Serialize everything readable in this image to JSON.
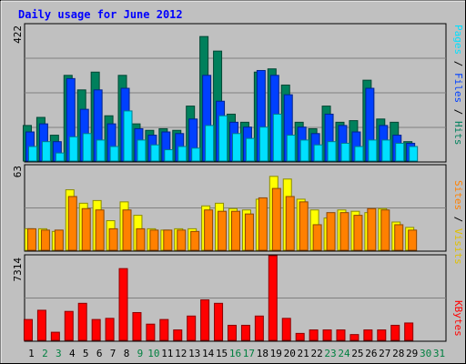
{
  "chart_data": [
    {
      "type": "bar",
      "title": "Daily usage for June 2012",
      "ymax_label": "422",
      "ylim": [
        0,
        422
      ],
      "legend": [
        {
          "name": "Pages",
          "color": "#00e0ff"
        },
        {
          "name": "Files",
          "color": "#0040ff"
        },
        {
          "name": "Hits",
          "color": "#00805c"
        }
      ],
      "legend_separator": " / ",
      "categories": [
        "1",
        "2",
        "3",
        "4",
        "5",
        "6",
        "7",
        "8",
        "9",
        "10",
        "11",
        "12",
        "13",
        "14",
        "15",
        "16",
        "17",
        "18",
        "19",
        "20",
        "21",
        "22",
        "23",
        "24",
        "25",
        "26",
        "27",
        "28",
        "29",
        "30",
        "31"
      ],
      "weekend_days": [
        "2",
        "3",
        "9",
        "10",
        "16",
        "17",
        "23",
        "24",
        "30",
        "31"
      ],
      "series": [
        {
          "name": "Hits",
          "color": "#00805c",
          "values": [
            110,
            135,
            80,
            265,
            220,
            275,
            140,
            265,
            115,
            95,
            100,
            95,
            170,
            385,
            340,
            145,
            120,
            275,
            285,
            235,
            120,
            100,
            170,
            120,
            125,
            250,
            130,
            120,
            60,
            null,
            null
          ]
        },
        {
          "name": "Files",
          "color": "#0040ff",
          "values": [
            90,
            115,
            60,
            255,
            160,
            220,
            115,
            225,
            100,
            80,
            90,
            85,
            130,
            265,
            185,
            120,
            105,
            280,
            265,
            205,
            105,
            85,
            145,
            110,
            90,
            225,
            110,
            80,
            55,
            null,
            null
          ]
        },
        {
          "name": "Pages",
          "color": "#00e0ff",
          "values": [
            45,
            60,
            25,
            75,
            85,
            65,
            45,
            155,
            65,
            50,
            35,
            45,
            40,
            110,
            140,
            85,
            70,
            105,
            145,
            80,
            65,
            50,
            60,
            55,
            45,
            65,
            65,
            55,
            45,
            null,
            null
          ]
        }
      ]
    },
    {
      "type": "bar",
      "ymax_label": "63",
      "ylim": [
        0,
        63
      ],
      "legend": [
        {
          "name": "Sites",
          "color": "#ff8000"
        },
        {
          "name": "Visits",
          "color": "#ffff00"
        }
      ],
      "legend_separator": " / ",
      "series": [
        {
          "name": "Visits",
          "color": "#ffff00",
          "values": [
            16,
            16,
            14,
            45,
            35,
            37,
            22,
            36,
            26,
            16,
            15,
            16,
            16,
            33,
            35,
            31,
            30,
            38,
            55,
            53,
            38,
            30,
            24,
            30,
            29,
            28,
            31,
            21,
            17,
            null,
            null
          ]
        },
        {
          "name": "Sites",
          "color": "#ff8000",
          "values": [
            16,
            15,
            15,
            40,
            31,
            30,
            16,
            30,
            16,
            15,
            15,
            15,
            14,
            30,
            29,
            29,
            27,
            39,
            46,
            40,
            36,
            19,
            28,
            28,
            26,
            31,
            30,
            19,
            15,
            null,
            null
          ]
        }
      ]
    },
    {
      "type": "bar",
      "ymax_label": "7314",
      "ylim": [
        0,
        7314
      ],
      "legend": [
        {
          "name": "KBytes",
          "color": "#ff0000"
        }
      ],
      "legend_separator": "",
      "series": [
        {
          "name": "KBytes",
          "color": "#ff0000",
          "values": [
            1800,
            2600,
            700,
            2500,
            3200,
            1800,
            1900,
            6200,
            2400,
            1400,
            1800,
            900,
            2100,
            3500,
            3200,
            1300,
            1300,
            2100,
            7314,
            1900,
            600,
            900,
            900,
            900,
            500,
            900,
            900,
            1300,
            1500,
            null,
            null
          ]
        }
      ]
    }
  ]
}
